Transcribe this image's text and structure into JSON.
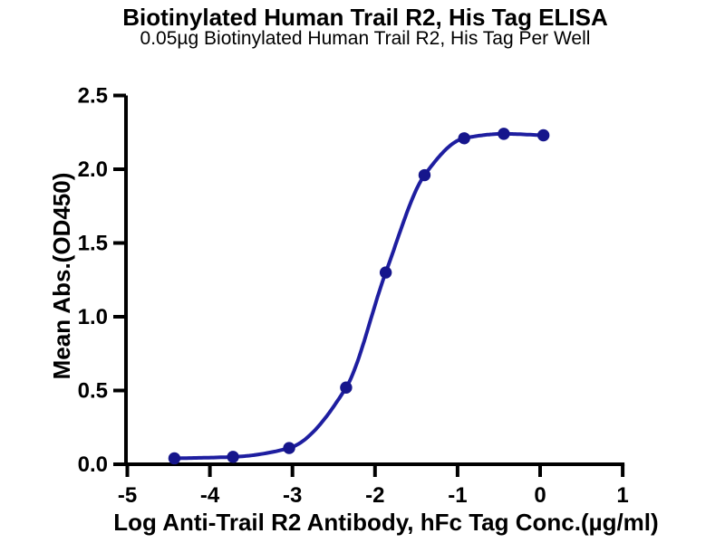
{
  "header": {
    "title": "Biotinylated Human Trail R2, His Tag ELISA",
    "subtitle": "0.05µg Biotinylated Human Trail R2, His Tag Per Well"
  },
  "chart_data": {
    "type": "line",
    "title": "Biotinylated Human Trail R2, His Tag ELISA",
    "subtitle": "0.05µg Biotinylated Human Trail R2, His Tag Per Well",
    "xlabel": "Log Anti-Trail R2 Antibody, hFc Tag Conc.(µg/ml)",
    "ylabel": "Mean Abs.(OD450)",
    "xlim": [
      -5,
      1
    ],
    "ylim": [
      0,
      2.5
    ],
    "xticks": [
      -5,
      -4,
      -3,
      -2,
      -1,
      0,
      1
    ],
    "xtick_labels": [
      "-5",
      "-4",
      "-3",
      "-2",
      "-1",
      "0",
      "1"
    ],
    "yticks": [
      0,
      0.5,
      1,
      1.5,
      2,
      2.5
    ],
    "ytick_labels": [
      "0.0",
      "0.5",
      "1.0",
      "1.5",
      "2.0",
      "2.5"
    ],
    "grid": false,
    "legend": "none",
    "points": [
      {
        "x": -4.43,
        "y": 0.04
      },
      {
        "x": -3.72,
        "y": 0.05
      },
      {
        "x": -3.04,
        "y": 0.11
      },
      {
        "x": -2.35,
        "y": 0.52
      },
      {
        "x": -1.87,
        "y": 1.3
      },
      {
        "x": -1.4,
        "y": 1.96
      },
      {
        "x": -0.92,
        "y": 2.21
      },
      {
        "x": -0.44,
        "y": 2.24
      },
      {
        "x": 0.04,
        "y": 2.23
      }
    ],
    "colors": {
      "line": "#1E1EA0",
      "marker": "#16168C",
      "axis": "#000000",
      "text": "#000000"
    }
  }
}
